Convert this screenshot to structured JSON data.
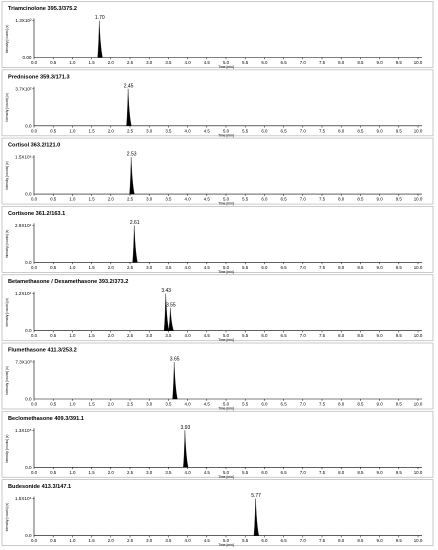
{
  "chart_data": [
    {
      "type": "line",
      "title": "Triamcinolone 395.3/375.2",
      "xlabel": "Time [min]",
      "ylabel": "Intensity [counts] (x)",
      "xlim": [
        0.0,
        10.0
      ],
      "xticks": [
        "0.0",
        "0.5",
        "1.0",
        "1.5",
        "2.0",
        "2.5",
        "3.0",
        "3.5",
        "4.0",
        "4.5",
        "5.0",
        "5.5",
        "6.0",
        "6.5",
        "7.0",
        "7.5",
        "8.0",
        "8.5",
        "9.0",
        "9.5",
        "10.0"
      ],
      "yticks": [
        "0.00",
        "1.3X10²"
      ],
      "peaks": [
        {
          "rt": 1.7,
          "label": "1.70",
          "height": 1.3
        }
      ]
    },
    {
      "type": "line",
      "title": "Prednisone 359.3/171.3",
      "xlabel": "Time [min]",
      "ylabel": "Intensity [counts] (x)",
      "xlim": [
        0.0,
        10.0
      ],
      "xticks": [
        "0.0",
        "0.5",
        "1.0",
        "1.5",
        "2.0",
        "2.5",
        "3.0",
        "3.5",
        "4.0",
        "4.5",
        "5.0",
        "5.5",
        "6.0",
        "6.5",
        "7.0",
        "7.5",
        "8.0",
        "8.5",
        "9.0",
        "9.5",
        "10.0"
      ],
      "yticks": [
        "0.0",
        "3.7X10²"
      ],
      "peaks": [
        {
          "rt": 2.45,
          "label": "2.45",
          "height": 3.7
        }
      ]
    },
    {
      "type": "line",
      "title": "Cortisol 363.2/121.0",
      "xlabel": "Time [min]",
      "ylabel": "Intensity [counts] (x)",
      "xlim": [
        0.0,
        10.0
      ],
      "xticks": [
        "0.0",
        "0.5",
        "1.0",
        "1.5",
        "2.0",
        "2.5",
        "3.0",
        "3.5",
        "4.0",
        "4.5",
        "5.0",
        "5.5",
        "6.0",
        "6.5",
        "7.0",
        "7.5",
        "8.0",
        "8.5",
        "9.0",
        "9.5",
        "10.0"
      ],
      "yticks": [
        "0.0",
        "1.5X10⁶"
      ],
      "peaks": [
        {
          "rt": 2.53,
          "label": "2.53",
          "height": 1.5
        }
      ]
    },
    {
      "type": "line",
      "title": "Cortisone 361.2/163.1",
      "xlabel": "Time [min]",
      "ylabel": "Intensity [counts] (x)",
      "xlim": [
        0.0,
        10.0
      ],
      "xticks": [
        "0.0",
        "0.5",
        "1.0",
        "1.5",
        "2.0",
        "2.5",
        "3.0",
        "3.5",
        "4.0",
        "4.5",
        "5.0",
        "5.5",
        "6.0",
        "6.5",
        "7.0",
        "7.5",
        "8.0",
        "8.5",
        "9.0",
        "9.5",
        "10.0"
      ],
      "yticks": [
        "0.0",
        "2.9X10⁴"
      ],
      "peaks": [
        {
          "rt": 2.61,
          "label": "2.61",
          "height": 2.9
        }
      ]
    },
    {
      "type": "line",
      "title": "Betamethasone / Dexamethasone 393.2/373.2",
      "xlabel": "Time [min]",
      "ylabel": "Intensity [counts] (x)",
      "xlim": [
        0.0,
        10.0
      ],
      "xticks": [
        "0.0",
        "0.5",
        "1.0",
        "1.5",
        "2.0",
        "2.5",
        "3.0",
        "3.5",
        "4.0",
        "4.5",
        "5.0",
        "5.5",
        "6.0",
        "6.5",
        "7.0",
        "7.5",
        "8.0",
        "8.5",
        "9.0",
        "9.5",
        "10.0"
      ],
      "yticks": [
        "0.0",
        "1.2X10⁴"
      ],
      "peaks": [
        {
          "rt": 3.43,
          "label": "3.43",
          "height": 1.2
        },
        {
          "rt": 3.55,
          "label": "3.55",
          "height": 0.74
        }
      ]
    },
    {
      "type": "line",
      "title": "Flumethasone 411.3/253.2",
      "xlabel": "Time [min]",
      "ylabel": "Intensity [counts] (x)",
      "xlim": [
        0.0,
        10.0
      ],
      "xticks": [
        "0.0",
        "0.5",
        "1.0",
        "1.5",
        "2.0",
        "2.5",
        "3.0",
        "3.5",
        "4.0",
        "4.5",
        "5.0",
        "5.5",
        "6.0",
        "6.5",
        "7.0",
        "7.5",
        "8.0",
        "8.5",
        "9.0",
        "9.5",
        "10.0"
      ],
      "yticks": [
        "0.0",
        "7.3X10³"
      ],
      "peaks": [
        {
          "rt": 3.65,
          "label": "3.65",
          "height": 7.3
        }
      ]
    },
    {
      "type": "line",
      "title": "Beclomethasone 409.3/391.1",
      "xlabel": "Time [min]",
      "ylabel": "Intensity [counts] (x)",
      "xlim": [
        0.0,
        10.0
      ],
      "xticks": [
        "0.0",
        "0.5",
        "1.0",
        "1.5",
        "2.0",
        "2.5",
        "3.0",
        "3.5",
        "4.0",
        "4.5",
        "5.0",
        "5.5",
        "6.0",
        "6.5",
        "7.0",
        "7.5",
        "8.0",
        "8.5",
        "9.0",
        "9.5",
        "10.0"
      ],
      "yticks": [
        "0.0",
        "1.3X10⁵"
      ],
      "peaks": [
        {
          "rt": 3.93,
          "label": "3.93",
          "height": 1.3
        }
      ]
    },
    {
      "type": "line",
      "title": "Budesonide 413.3/147.1",
      "xlabel": "Time [min]",
      "ylabel": "Intensity [counts] (x)",
      "xlim": [
        0.0,
        10.0
      ],
      "xticks": [
        "0.0",
        "0.5",
        "1.0",
        "1.5",
        "2.0",
        "2.5",
        "3.0",
        "3.5",
        "4.0",
        "4.5",
        "5.0",
        "5.5",
        "6.0",
        "6.5",
        "7.0",
        "7.5",
        "8.0",
        "8.5",
        "9.0",
        "9.5",
        "10.0"
      ],
      "yticks": [
        "0.0",
        "1.5X10⁴"
      ],
      "peaks": [
        {
          "rt": 5.77,
          "label": "5.77",
          "height": 1.5
        }
      ]
    }
  ],
  "colors": {
    "trace": "#000000",
    "frame": "#bdbdbd",
    "background": "#ffffff"
  }
}
